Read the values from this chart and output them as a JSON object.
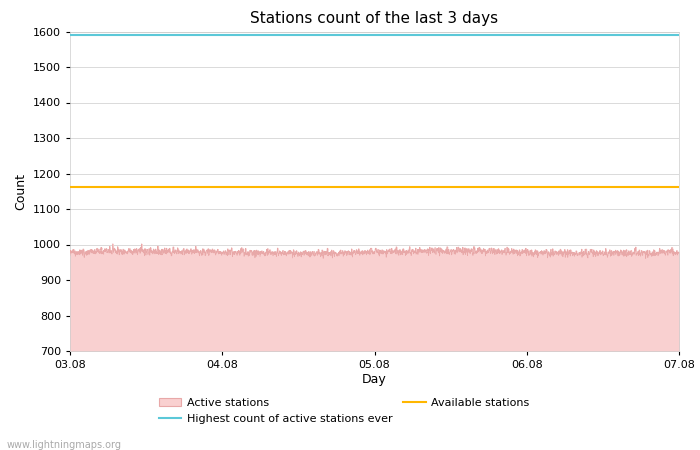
{
  "title": "Stations count of the last 3 days",
  "xlabel": "Day",
  "ylabel": "Count",
  "ylim": [
    700,
    1600
  ],
  "yticks": [
    700,
    800,
    900,
    1000,
    1100,
    1200,
    1300,
    1400,
    1500,
    1600
  ],
  "x_start": 0,
  "x_end": 4320,
  "xtick_labels": [
    "03.08",
    "04.08",
    "05.08",
    "06.08",
    "07.08"
  ],
  "xtick_positions": [
    0,
    1080,
    2160,
    3240,
    4320
  ],
  "active_stations_base": 978,
  "active_stations_noise": 8,
  "active_stations_fill_color": "#f9d0d0",
  "active_stations_line_color": "#e8a8a8",
  "highest_count_ever": 1590,
  "highest_count_color": "#5bc8d8",
  "available_stations": 1163,
  "available_stations_color": "#ffb700",
  "watermark": "www.lightningmaps.org",
  "background_color": "#ffffff",
  "grid_color": "#cccccc",
  "title_fontsize": 11,
  "axis_label_fontsize": 9,
  "tick_fontsize": 8,
  "legend_fontsize": 8
}
